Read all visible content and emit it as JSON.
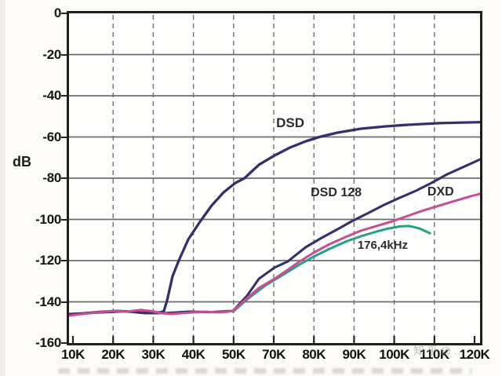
{
  "page": {
    "watermark_text": "知乎@…"
  },
  "chart_data": {
    "type": "line",
    "title": "",
    "xlabel": "",
    "ylabel": "dB",
    "ylim": [
      -160,
      0
    ],
    "grid": "on",
    "x_tick_labels": [
      "10K",
      "20K",
      "30K",
      "40K",
      "50K",
      "70K",
      "80K",
      "90K",
      "100K",
      "110K",
      "120K"
    ],
    "x_axis_note": "ticks are evenly spaced; the source image skips a 60K label",
    "y_tick_labels": [
      "0",
      "-20",
      "-40",
      "-60",
      "-80",
      "-100",
      "-120",
      "-140",
      "-160"
    ],
    "colors": {
      "navy": "#34306d",
      "pink": "#c94d95",
      "green": "#23a184",
      "grid": "#6e6e6e",
      "border": "#1f1f1f"
    },
    "annotations": [
      {
        "label": "DSD",
        "u": 0.504,
        "db": -49.9,
        "size": 17
      },
      {
        "label": "DSD 128",
        "u": 0.588,
        "db": -84.2,
        "size": 16
      },
      {
        "label": "DXD",
        "u": 0.872,
        "db": -83.8,
        "size": 16
      },
      {
        "label": "176,4kHz",
        "u": 0.702,
        "db": -109.7,
        "size": 15
      }
    ],
    "series": [
      {
        "name": "DSD 128",
        "color": "#34306d",
        "width": 3.1,
        "values_at_ticks": [
          -146,
          -145,
          -146,
          -145,
          -144.5,
          -123.5,
          -110.5,
          -100.5,
          -91,
          -81,
          -71
        ],
        "points": [
          [
            0,
            -145.9
          ],
          [
            0.061,
            -145.3
          ],
          [
            0.137,
            -144.6
          ],
          [
            0.185,
            -145.5
          ],
          [
            0.233,
            -145.5
          ],
          [
            0.29,
            -144.8
          ],
          [
            0.347,
            -145
          ],
          [
            0.399,
            -144.4
          ],
          [
            0.433,
            -137.1
          ],
          [
            0.462,
            -128.8
          ],
          [
            0.5,
            -123.4
          ],
          [
            0.532,
            -120.4
          ],
          [
            0.576,
            -113.5
          ],
          [
            0.615,
            -108.9
          ],
          [
            0.653,
            -104.8
          ],
          [
            0.687,
            -101
          ],
          [
            0.729,
            -96.8
          ],
          [
            0.767,
            -92.9
          ],
          [
            0.805,
            -89.5
          ],
          [
            0.844,
            -86.1
          ],
          [
            0.882,
            -82.3
          ],
          [
            0.92,
            -78.1
          ],
          [
            0.958,
            -74.7
          ],
          [
            1,
            -70.9
          ]
        ]
      },
      {
        "name": "DSD",
        "color": "#34306d",
        "width": 3.3,
        "values_at_ticks": [
          -146,
          -145,
          -146,
          -109,
          -83,
          -69,
          -60.5,
          -56.5,
          -54.5,
          -53.5,
          -53
        ],
        "points": [
          [
            0,
            -146.3
          ],
          [
            0.042,
            -145.5
          ],
          [
            0.08,
            -144.8
          ],
          [
            0.118,
            -144.4
          ],
          [
            0.147,
            -144.8
          ],
          [
            0.176,
            -144
          ],
          [
            0.204,
            -145.1
          ],
          [
            0.223,
            -145.1
          ],
          [
            0.231,
            -144.4
          ],
          [
            0.239,
            -139
          ],
          [
            0.252,
            -127.6
          ],
          [
            0.267,
            -120
          ],
          [
            0.29,
            -109.7
          ],
          [
            0.319,
            -101
          ],
          [
            0.347,
            -93.3
          ],
          [
            0.376,
            -86.9
          ],
          [
            0.405,
            -82.3
          ],
          [
            0.427,
            -80
          ],
          [
            0.462,
            -73.5
          ],
          [
            0.5,
            -69
          ],
          [
            0.538,
            -65.1
          ],
          [
            0.576,
            -62.1
          ],
          [
            0.609,
            -60
          ],
          [
            0.653,
            -57.9
          ],
          [
            0.71,
            -56
          ],
          [
            0.767,
            -54.9
          ],
          [
            0.824,
            -54.1
          ],
          [
            0.901,
            -53.3
          ],
          [
            0.958,
            -53
          ],
          [
            1,
            -52.8
          ]
        ]
      },
      {
        "name": "176,4kHz",
        "color": "#23a184",
        "width": 3.0,
        "values_at_ticks": [
          -146.5,
          -145,
          -144.5,
          -145.5,
          -144.5,
          -130,
          -118,
          -109,
          -104,
          null,
          null
        ],
        "points": [
          [
            0.399,
            -144.8
          ],
          [
            0.439,
            -137.9
          ],
          [
            0.477,
            -132.2
          ],
          [
            0.515,
            -127.6
          ],
          [
            0.561,
            -121.9
          ],
          [
            0.595,
            -118.1
          ],
          [
            0.634,
            -114.3
          ],
          [
            0.672,
            -110.9
          ],
          [
            0.71,
            -108.2
          ],
          [
            0.748,
            -105.9
          ],
          [
            0.777,
            -104.4
          ],
          [
            0.805,
            -103.4
          ],
          [
            0.828,
            -103.2
          ],
          [
            0.853,
            -104.4
          ],
          [
            0.878,
            -106.7
          ]
        ]
      },
      {
        "name": "DXD",
        "color": "#c94d95",
        "width": 3.0,
        "values_at_ticks": [
          -146.5,
          -145,
          -144.5,
          -145.5,
          -144.5,
          -129,
          -116,
          -107.5,
          -100.5,
          -94,
          -88.5
        ],
        "points": [
          [
            0,
            -146.7
          ],
          [
            0.032,
            -145.9
          ],
          [
            0.071,
            -145.1
          ],
          [
            0.109,
            -144.4
          ],
          [
            0.141,
            -144.8
          ],
          [
            0.172,
            -144
          ],
          [
            0.198,
            -144.4
          ],
          [
            0.223,
            -145.5
          ],
          [
            0.248,
            -145.9
          ],
          [
            0.275,
            -145.5
          ],
          [
            0.305,
            -145.1
          ],
          [
            0.332,
            -144.8
          ],
          [
            0.363,
            -145.1
          ],
          [
            0.385,
            -144.8
          ],
          [
            0.399,
            -144.4
          ],
          [
            0.433,
            -138.3
          ],
          [
            0.462,
            -133.3
          ],
          [
            0.5,
            -128.8
          ],
          [
            0.529,
            -124.9
          ],
          [
            0.561,
            -120.4
          ],
          [
            0.595,
            -116.2
          ],
          [
            0.634,
            -112
          ],
          [
            0.672,
            -108.6
          ],
          [
            0.71,
            -105.5
          ],
          [
            0.748,
            -103.2
          ],
          [
            0.786,
            -101
          ],
          [
            0.824,
            -98.3
          ],
          [
            0.863,
            -95.6
          ],
          [
            0.901,
            -93.3
          ],
          [
            0.939,
            -91
          ],
          [
            0.977,
            -88.8
          ],
          [
            1,
            -87.6
          ]
        ]
      }
    ]
  }
}
